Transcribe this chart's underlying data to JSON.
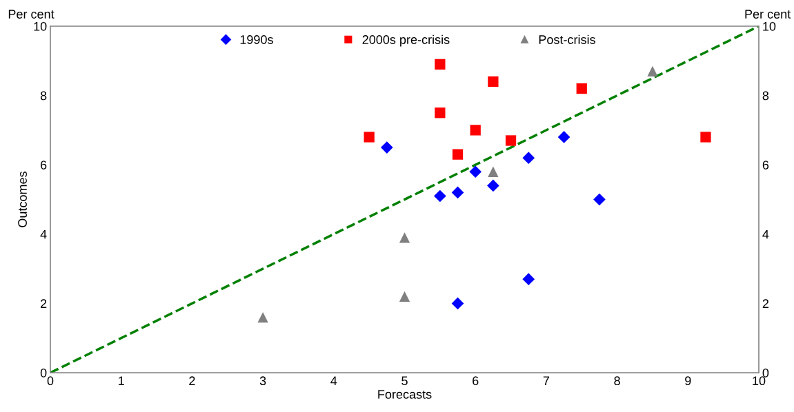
{
  "chart_data": {
    "type": "scatter",
    "xlabel": "Forecasts",
    "ylabel": "Outcomes",
    "annotations": [
      "Per cent",
      "Per cent"
    ],
    "series": [
      {
        "name": "1990s",
        "color": "#0000ff",
        "marker": "diamond",
        "x": [
          4.75,
          5.5,
          5.75,
          6.0,
          6.25,
          6.75,
          7.25,
          7.75,
          5.75,
          6.75
        ],
        "values": [
          6.5,
          5.1,
          5.2,
          5.8,
          5.4,
          6.2,
          6.8,
          5.0,
          2.0,
          2.7
        ]
      },
      {
        "name": "2000s pre-crisis",
        "color": "#ff0000",
        "marker": "square",
        "x": [
          4.5,
          5.5,
          5.5,
          5.75,
          6.0,
          6.25,
          6.5,
          7.5,
          9.25
        ],
        "values": [
          6.8,
          8.9,
          7.5,
          6.3,
          7.0,
          8.4,
          6.7,
          8.2,
          6.8
        ]
      },
      {
        "name": "Post-crisis",
        "color": "#808080",
        "marker": "triangle",
        "x": [
          3.0,
          5.0,
          5.0,
          6.25,
          8.5
        ],
        "values": [
          1.6,
          3.9,
          2.2,
          5.8,
          8.7
        ]
      },
      {
        "type": "line",
        "color": "#008000",
        "line_style": "dashed",
        "marker": "none",
        "x": [
          0,
          10
        ],
        "values": [
          0,
          10
        ]
      }
    ],
    "xlim": [
      0,
      10
    ],
    "xticks": [
      0,
      1,
      2,
      3,
      4,
      5,
      6,
      7,
      8,
      9,
      10
    ],
    "ylim": [
      0,
      10
    ],
    "yticks": [
      0,
      2,
      4,
      6,
      8,
      10
    ],
    "y2lim": [
      0,
      10
    ],
    "y2ticks": [
      0,
      2,
      4,
      6,
      8,
      10
    ],
    "grid": false,
    "legend": "top"
  }
}
